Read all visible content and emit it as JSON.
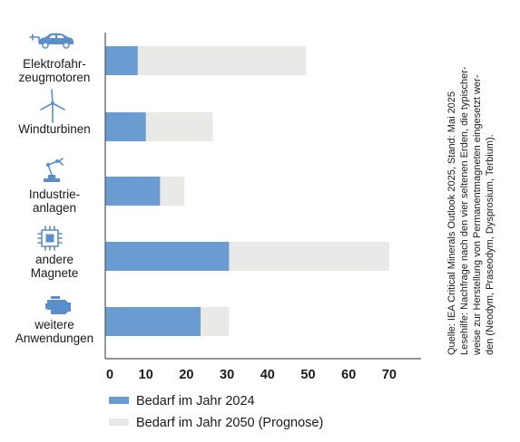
{
  "chart_data": {
    "type": "bar",
    "orientation": "horizontal",
    "stacked": "overlay",
    "categories": [
      {
        "label_lines": [
          "Elektrofahr-",
          "zeugmotoren"
        ],
        "icon": "electric-car-icon"
      },
      {
        "label_lines": [
          "Windturbinen"
        ],
        "icon": "wind-turbine-icon"
      },
      {
        "label_lines": [
          "Industrie-",
          "anlagen"
        ],
        "icon": "robot-arm-icon"
      },
      {
        "label_lines": [
          "andere",
          "Magnete"
        ],
        "icon": "chip-icon"
      },
      {
        "label_lines": [
          "weitere",
          "Anwendungen"
        ],
        "icon": "engine-icon"
      }
    ],
    "series": [
      {
        "name": "Bedarf im Jahr 2024",
        "color": "#6a9bd1",
        "values": [
          8,
          10,
          13.5,
          30.5,
          23.5
        ]
      },
      {
        "name": "Bedarf im Jahr 2050 (Prognose)",
        "color": "#e9e9e8",
        "values": [
          49.5,
          26.5,
          19.5,
          70,
          30.5
        ]
      }
    ],
    "xlim": [
      0,
      78
    ],
    "xticks": [
      "0",
      "10",
      "20",
      "30",
      "40",
      "50",
      "60",
      "70"
    ],
    "legend_position": "bottom-left",
    "grid": false
  },
  "source_note_lines": [
    "Quelle: IEA Critical Minerals Outlook 2025, Stand: Mai 2025",
    "Lesehilfe: Nachfrage nach den vier seltenen Erden, die typischer-",
    "weise zur Herstellung von Permanentmagneten eingesetzt wer-",
    "den (Neodym, Praseodym, Dysprosium, Terbium)."
  ]
}
